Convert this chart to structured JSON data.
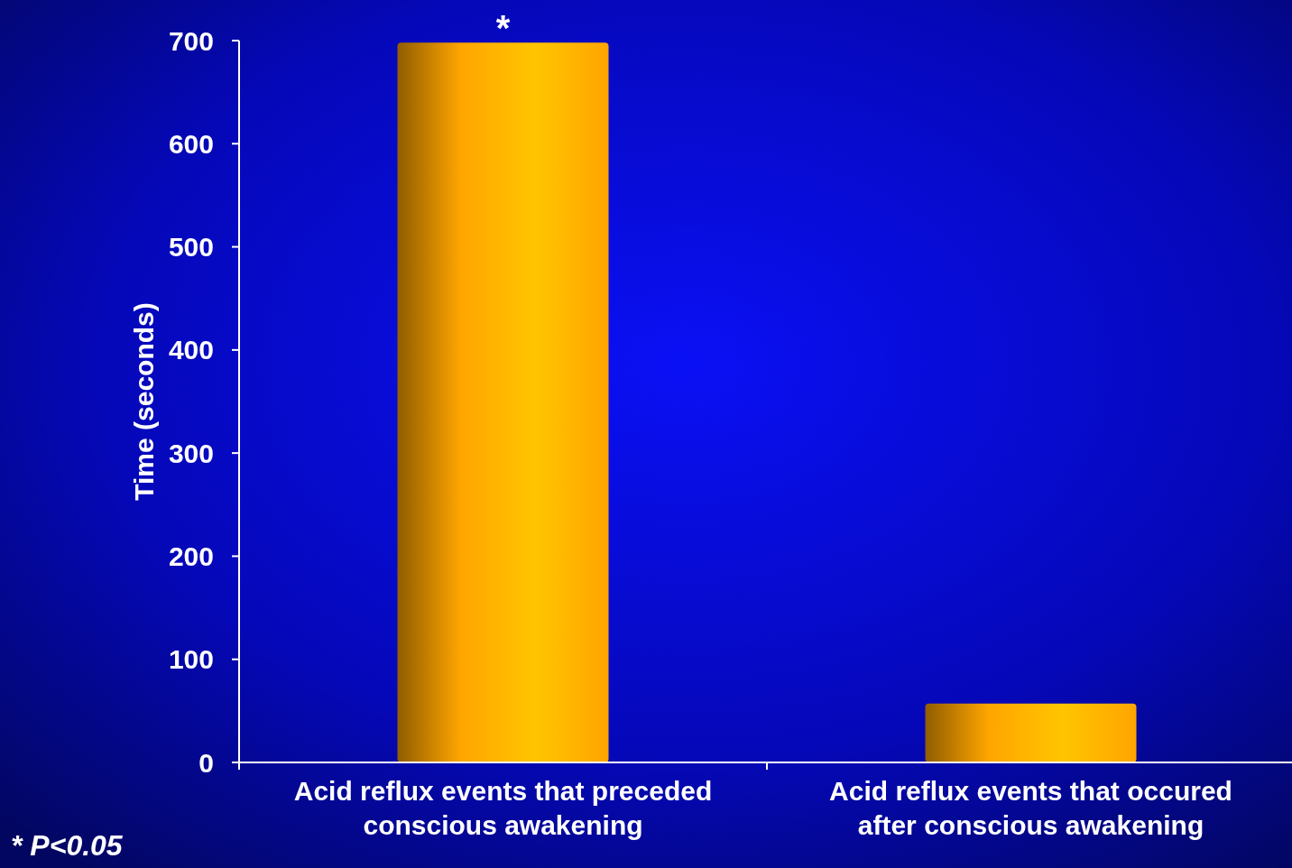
{
  "chart_data": {
    "type": "bar",
    "ylabel": "Time (seconds)",
    "categories": [
      "Acid reflux events that preceded conscious awakening",
      "Acid reflux events that occured after conscious awakening"
    ],
    "values": [
      698,
      57
    ],
    "color": "#ffa500",
    "ylim": [
      0,
      700
    ],
    "yticks": [
      0,
      100,
      200,
      300,
      400,
      500,
      600,
      700
    ],
    "grid": false,
    "annotations": [
      {
        "text": "*",
        "x": "Acid reflux events that preceded conscious awakening",
        "y": 698
      },
      "* P<0.05"
    ]
  }
}
